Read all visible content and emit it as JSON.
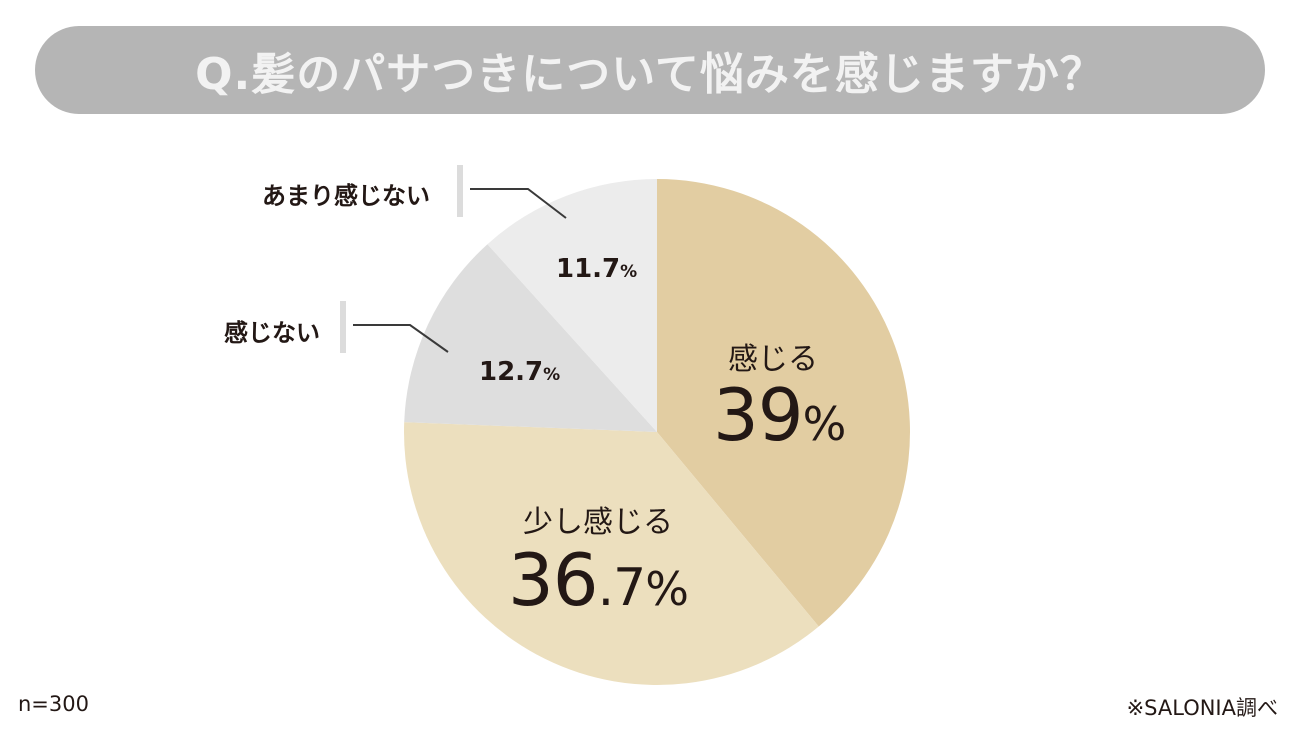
{
  "title": "Q.髪のパサつきについて悩みを感じますか？",
  "footer": {
    "sample": "n=300",
    "source": "※SALONIA調べ"
  },
  "slices": [
    {
      "label": "感じる",
      "value_int": "39",
      "value_dec": "",
      "unit": "%",
      "color": "#e2cda2"
    },
    {
      "label": "少し感じる",
      "value_int": "36",
      "value_dec": ".7",
      "unit": "%",
      "color": "#ecdfbe"
    },
    {
      "label": "感じない",
      "value": "12.7",
      "unit": "%",
      "color": "#dedede"
    },
    {
      "label": "あまり感じない",
      "value": "11.7",
      "unit": "%",
      "color": "#ececec"
    }
  ],
  "chart_data": {
    "type": "pie",
    "title": "Q.髪のパサつきについて悩みを感じますか？",
    "categories": [
      "感じる",
      "少し感じる",
      "感じない",
      "あまり感じない"
    ],
    "values": [
      39,
      36.7,
      12.7,
      11.7
    ],
    "unit": "%",
    "colors": [
      "#e2cda2",
      "#ecdfbe",
      "#dedede",
      "#ececec"
    ],
    "start_angle": "12 o'clock, clockwise",
    "annotations": [
      "n=300",
      "※SALONIA調べ"
    ],
    "legend": "none (direct labels)"
  }
}
